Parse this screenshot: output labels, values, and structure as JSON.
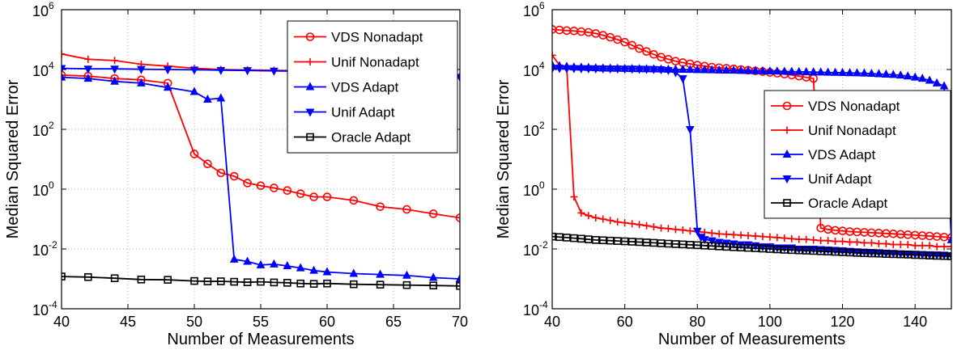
{
  "chart_data": [
    {
      "type": "line",
      "xlabel": "Number of Measurements",
      "ylabel": "Median Squared Error",
      "xlim": [
        40,
        70
      ],
      "ylim": [
        0.0001,
        1000000
      ],
      "y_scale": "log",
      "grid": true,
      "legend_position": "top-right",
      "xticks": [
        "40",
        "45",
        "50",
        "55",
        "60",
        "65",
        "70"
      ],
      "yticks": [
        {
          "base": "10",
          "exp": "-4"
        },
        {
          "base": "10",
          "exp": "-2"
        },
        {
          "base": "10",
          "exp": "0"
        },
        {
          "base": "10",
          "exp": "2"
        },
        {
          "base": "10",
          "exp": "4"
        },
        {
          "base": "10",
          "exp": "6"
        }
      ],
      "series": [
        {
          "name": "VDS Nonadapt",
          "color": "#ff0000",
          "marker": "circle",
          "x": [
            40,
            42,
            44,
            46,
            48,
            50,
            51,
            52,
            53,
            54,
            55,
            56,
            57,
            58,
            59,
            60,
            62,
            64,
            66,
            68,
            70
          ],
          "y": [
            6500,
            6000,
            5000,
            4500,
            3500,
            15,
            7,
            3.5,
            2.7,
            1.6,
            1.3,
            1.1,
            0.9,
            0.7,
            0.55,
            0.55,
            0.42,
            0.26,
            0.21,
            0.15,
            0.11
          ]
        },
        {
          "name": "Unif Nonadapt",
          "color": "#ff0000",
          "marker": "plus",
          "x": [
            40,
            42,
            44,
            46,
            48,
            50,
            52,
            54,
            56,
            58,
            60,
            62,
            64,
            66,
            68,
            70
          ],
          "y": [
            33000,
            22000,
            20000,
            15000,
            13000,
            11000,
            10000,
            9700,
            9400,
            9000,
            8600,
            8000,
            7500,
            7000,
            6400,
            5800
          ]
        },
        {
          "name": "VDS Adapt",
          "color": "#0000ff",
          "marker": "triangle-up",
          "x": [
            40,
            42,
            44,
            46,
            48,
            50,
            51,
            52,
            53,
            54,
            55,
            56,
            57,
            58,
            59,
            60,
            62,
            64,
            66,
            68,
            70
          ],
          "y": [
            5500,
            5000,
            4000,
            3500,
            2500,
            1800,
            1000,
            1100,
            0.0045,
            0.0038,
            0.0029,
            0.0031,
            0.0027,
            0.0023,
            0.0019,
            0.0017,
            0.0015,
            0.0014,
            0.0013,
            0.0011,
            0.001
          ]
        },
        {
          "name": "Unif Adapt",
          "color": "#0000ff",
          "marker": "triangle-down",
          "x": [
            40,
            42,
            44,
            46,
            48,
            50,
            52,
            54,
            56,
            58,
            60,
            62,
            64,
            66,
            68,
            70
          ],
          "y": [
            11000,
            10500,
            10500,
            10200,
            10000,
            9800,
            9500,
            9300,
            9000,
            8800,
            8500,
            8000,
            7600,
            7000,
            6400,
            5600
          ]
        },
        {
          "name": "Oracle Adapt",
          "color": "#000000",
          "marker": "square",
          "x": [
            40,
            42,
            44,
            46,
            48,
            50,
            51,
            52,
            53,
            54,
            55,
            56,
            57,
            58,
            59,
            60,
            62,
            64,
            66,
            68,
            70
          ],
          "y": [
            0.0012,
            0.00115,
            0.00105,
            0.00095,
            0.00093,
            0.00085,
            0.00082,
            0.00083,
            0.0008,
            0.00077,
            0.0008,
            0.00076,
            0.00074,
            0.0007,
            0.00068,
            0.0007,
            0.00066,
            0.00064,
            0.00062,
            0.0006,
            0.00058
          ]
        }
      ]
    },
    {
      "type": "line",
      "xlabel": "Number of Measurements",
      "ylabel": "Median Squared Error",
      "xlim": [
        40,
        150
      ],
      "ylim": [
        0.0001,
        1000000
      ],
      "y_scale": "log",
      "grid": true,
      "legend_position": "right",
      "xticks": [
        "40",
        "60",
        "80",
        "100",
        "120",
        "140"
      ],
      "yticks": [
        {
          "base": "10",
          "exp": "-4"
        },
        {
          "base": "10",
          "exp": "-2"
        },
        {
          "base": "10",
          "exp": "0"
        },
        {
          "base": "10",
          "exp": "2"
        },
        {
          "base": "10",
          "exp": "4"
        },
        {
          "base": "10",
          "exp": "6"
        }
      ],
      "series": [
        {
          "name": "VDS Nonadapt",
          "color": "#ff0000",
          "marker": "circle",
          "x": [
            40,
            42,
            44,
            46,
            48,
            50,
            52,
            54,
            56,
            58,
            60,
            62,
            64,
            66,
            68,
            70,
            72,
            74,
            76,
            78,
            80,
            82,
            84,
            86,
            88,
            90,
            92,
            94,
            96,
            98,
            100,
            102,
            104,
            106,
            108,
            110,
            112,
            114,
            116,
            118,
            120,
            122,
            124,
            126,
            128,
            130,
            132,
            134,
            136,
            138,
            140,
            142,
            144,
            146,
            148,
            150
          ],
          "y": [
            220000,
            210000,
            200000,
            195000,
            185000,
            175000,
            160000,
            140000,
            120000,
            100000,
            82000,
            65000,
            50000,
            40000,
            32000,
            26000,
            22000,
            19000,
            17000,
            15500,
            14000,
            13000,
            12000,
            11500,
            11000,
            10500,
            10000,
            9500,
            9000,
            8500,
            8000,
            7500,
            7000,
            6500,
            6000,
            5500,
            5000,
            0.05,
            0.045,
            0.042,
            0.04,
            0.038,
            0.037,
            0.036,
            0.035,
            0.034,
            0.033,
            0.032,
            0.031,
            0.03,
            0.029,
            0.028,
            0.027,
            0.026,
            0.025,
            0.024
          ]
        },
        {
          "name": "Unif Nonadapt",
          "color": "#ff0000",
          "marker": "plus",
          "x": [
            40,
            42,
            44,
            46,
            48,
            50,
            52,
            54,
            56,
            58,
            60,
            62,
            64,
            66,
            68,
            70,
            72,
            74,
            76,
            78,
            80,
            82,
            84,
            86,
            88,
            90,
            92,
            94,
            96,
            98,
            100,
            102,
            104,
            106,
            108,
            110,
            112,
            114,
            116,
            118,
            120,
            122,
            124,
            126,
            128,
            130,
            132,
            134,
            136,
            138,
            140,
            142,
            144,
            146,
            148,
            150
          ],
          "y": [
            30000,
            14000,
            12000,
            0.55,
            0.16,
            0.13,
            0.11,
            0.1,
            0.09,
            0.08,
            0.075,
            0.07,
            0.065,
            0.06,
            0.055,
            0.05,
            0.048,
            0.045,
            0.043,
            0.04,
            0.038,
            0.036,
            0.034,
            0.032,
            0.031,
            0.03,
            0.029,
            0.028,
            0.027,
            0.026,
            0.025,
            0.024,
            0.023,
            0.022,
            0.021,
            0.021,
            0.02,
            0.019,
            0.019,
            0.018,
            0.018,
            0.017,
            0.017,
            0.016,
            0.016,
            0.015,
            0.015,
            0.014,
            0.014,
            0.014,
            0.013,
            0.013,
            0.013,
            0.012,
            0.012,
            0.012
          ]
        },
        {
          "name": "VDS Adapt",
          "color": "#0000ff",
          "marker": "triangle-up",
          "x": [
            40,
            42,
            44,
            46,
            48,
            50,
            52,
            54,
            56,
            58,
            60,
            62,
            64,
            66,
            68,
            70,
            72,
            74,
            76,
            78,
            80,
            82,
            84,
            86,
            88,
            90,
            92,
            94,
            96,
            98,
            100,
            102,
            104,
            106,
            108,
            110,
            112,
            114,
            116,
            118,
            120,
            122,
            124,
            126,
            128,
            130,
            132,
            134,
            136,
            138,
            140,
            142,
            144,
            146,
            148,
            150
          ],
          "y": [
            14000,
            13000,
            12500,
            12000,
            11800,
            11500,
            11200,
            11000,
            10900,
            10800,
            10700,
            10600,
            10500,
            10400,
            10300,
            10200,
            10100,
            10000,
            10000,
            9900,
            9800,
            9700,
            9600,
            9500,
            9400,
            9300,
            9200,
            9100,
            9000,
            8900,
            8800,
            8700,
            8600,
            8500,
            8400,
            8300,
            8200,
            8100,
            8000,
            7900,
            7800,
            7700,
            7600,
            7500,
            7300,
            7100,
            6900,
            6700,
            6400,
            6000,
            5500,
            5000,
            4300,
            3500,
            2800,
            0.02
          ]
        },
        {
          "name": "Unif Adapt",
          "color": "#0000ff",
          "marker": "triangle-down",
          "x": [
            40,
            42,
            44,
            46,
            48,
            50,
            52,
            54,
            56,
            58,
            60,
            62,
            64,
            66,
            68,
            70,
            72,
            74,
            76,
            78,
            80,
            81,
            82,
            84,
            86,
            88,
            90,
            92,
            94,
            96,
            98,
            100,
            102,
            104,
            106,
            108,
            110,
            112,
            114,
            116,
            118,
            120,
            122,
            124,
            126,
            128,
            130,
            132,
            134,
            136,
            138,
            140,
            142,
            144,
            146,
            148,
            150
          ],
          "y": [
            11000,
            11000,
            10900,
            10900,
            10800,
            10800,
            10700,
            10700,
            10600,
            10600,
            10500,
            10500,
            10400,
            10300,
            10200,
            10000,
            9500,
            8000,
            5000,
            100,
            0.04,
            0.025,
            0.021,
            0.019,
            0.017,
            0.016,
            0.015,
            0.014,
            0.014,
            0.013,
            0.012,
            0.012,
            0.011,
            0.011,
            0.011,
            0.01,
            0.01,
            0.01,
            0.0097,
            0.0094,
            0.0091,
            0.0088,
            0.0085,
            0.0082,
            0.008,
            0.0078,
            0.0076,
            0.0074,
            0.0072,
            0.007,
            0.0069,
            0.0068,
            0.0066,
            0.0065,
            0.0064,
            0.0063,
            0.006
          ]
        },
        {
          "name": "Oracle Adapt",
          "color": "#000000",
          "marker": "square",
          "x": [
            40,
            42,
            44,
            46,
            48,
            50,
            52,
            54,
            56,
            58,
            60,
            62,
            64,
            66,
            68,
            70,
            72,
            74,
            76,
            78,
            80,
            82,
            84,
            86,
            88,
            90,
            92,
            94,
            96,
            98,
            100,
            102,
            104,
            106,
            108,
            110,
            112,
            114,
            116,
            118,
            120,
            122,
            124,
            126,
            128,
            130,
            132,
            134,
            136,
            138,
            140,
            142,
            144,
            146,
            148,
            150
          ],
          "y": [
            0.026,
            0.025,
            0.024,
            0.023,
            0.022,
            0.021,
            0.02,
            0.0195,
            0.019,
            0.0185,
            0.018,
            0.0175,
            0.017,
            0.0165,
            0.016,
            0.0155,
            0.015,
            0.0146,
            0.0142,
            0.0138,
            0.0134,
            0.013,
            0.0126,
            0.0122,
            0.0118,
            0.0115,
            0.0112,
            0.0109,
            0.0106,
            0.0103,
            0.01,
            0.0097,
            0.0094,
            0.0092,
            0.009,
            0.0088,
            0.0086,
            0.0084,
            0.0082,
            0.008,
            0.0078,
            0.0076,
            0.0074,
            0.0072,
            0.0071,
            0.007,
            0.0068,
            0.0067,
            0.0066,
            0.0065,
            0.0063,
            0.0062,
            0.006,
            0.0059,
            0.0058,
            0.0057
          ]
        }
      ]
    }
  ]
}
